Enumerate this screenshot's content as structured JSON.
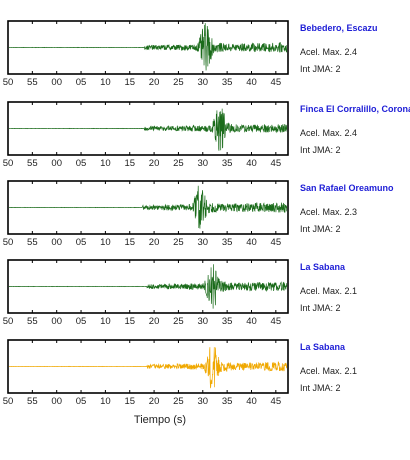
{
  "chart_data": {
    "type": "line",
    "xlabel": "Tiempo (s)",
    "x_tick_labels": [
      "50",
      "55",
      "00",
      "05",
      "10",
      "15",
      "20",
      "25",
      "30",
      "35",
      "40",
      "45"
    ],
    "grid": false,
    "panels": [
      {
        "station": "Bebedero, Escazu",
        "accel_label": "Acel. Max. 2.4",
        "jma_label": "Int JMA: 2",
        "color": "#1a6b1a",
        "onset": 18.0,
        "peak_time": 30.6,
        "peak_amp": 1.0
      },
      {
        "station": "Finca El Corralillo, Corona",
        "accel_label": "Acel. Max. 2.4",
        "jma_label": "Int JMA: 2",
        "color": "#1a6b1a",
        "onset": 18.0,
        "peak_time": 33.5,
        "peak_amp": 1.0
      },
      {
        "station": "San Rafael Oreamuno",
        "accel_label": "Acel. Max. 2.3",
        "jma_label": "Int JMA: 2",
        "color": "#1a6b1a",
        "onset": 17.5,
        "peak_time": 29.5,
        "peak_amp": 1.0
      },
      {
        "station": "La Sabana",
        "accel_label": "Acel. Max. 2.1",
        "jma_label": "Int JMA: 2",
        "color": "#1a6b1a",
        "onset": 18.5,
        "peak_time": 32.0,
        "peak_amp": 1.0
      },
      {
        "station": "La Sabana",
        "accel_label": "Acel. Max. 2.1",
        "jma_label": "Int JMA: 2",
        "color": "#f0a800",
        "onset": 18.5,
        "peak_time": 32.0,
        "peak_amp": 1.0
      }
    ]
  }
}
